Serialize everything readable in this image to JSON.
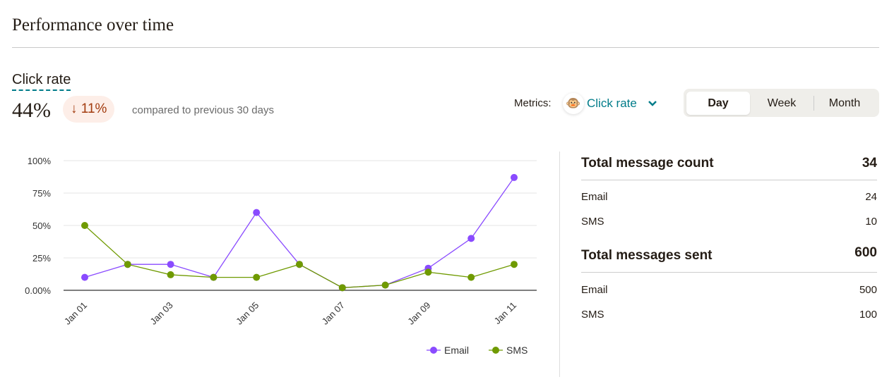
{
  "header": {
    "title": "Performance over time"
  },
  "summary": {
    "metric": "Click rate",
    "value": "44%",
    "change": "11%",
    "change_icon": "arrow-down-icon",
    "comparison": "compared to previous 30 days"
  },
  "controls": {
    "metrics_label": "Metrics:",
    "selected_metric": "Click rate",
    "periods": [
      "Day",
      "Week",
      "Month"
    ],
    "active_period": "Day"
  },
  "colors": {
    "email": "#8a4bff",
    "sms": "#6f9a00",
    "accent": "#007c89"
  },
  "chart_data": {
    "type": "line",
    "x": [
      "Jan 01",
      "Jan 02",
      "Jan 03",
      "Jan 04",
      "Jan 05",
      "Jan 06",
      "Jan 07",
      "Jan 08",
      "Jan 09",
      "Jan 10",
      "Jan 11"
    ],
    "x_tick_labels": [
      "Jan 01",
      "Jan 03",
      "Jan 05",
      "Jan 07",
      "Jan 09",
      "Jan 11"
    ],
    "y_ticks": [
      "0.00%",
      "25%",
      "50%",
      "75%",
      "100%"
    ],
    "ylim": [
      0,
      100
    ],
    "series": [
      {
        "name": "Email",
        "values": [
          10,
          20,
          20,
          10,
          60,
          20,
          2,
          4,
          17,
          40,
          87
        ]
      },
      {
        "name": "SMS",
        "values": [
          50,
          20,
          12,
          10,
          10,
          20,
          2,
          4,
          14,
          10,
          20
        ]
      }
    ],
    "legend": "bottom-right"
  },
  "stats": {
    "total_count": {
      "label": "Total message count",
      "value": "34",
      "rows": [
        {
          "label": "Email",
          "value": "24"
        },
        {
          "label": "SMS",
          "value": "10"
        }
      ]
    },
    "total_sent": {
      "label": "Total messages sent",
      "value": "600",
      "rows": [
        {
          "label": "Email",
          "value": "500"
        },
        {
          "label": "SMS",
          "value": "100"
        }
      ]
    }
  }
}
